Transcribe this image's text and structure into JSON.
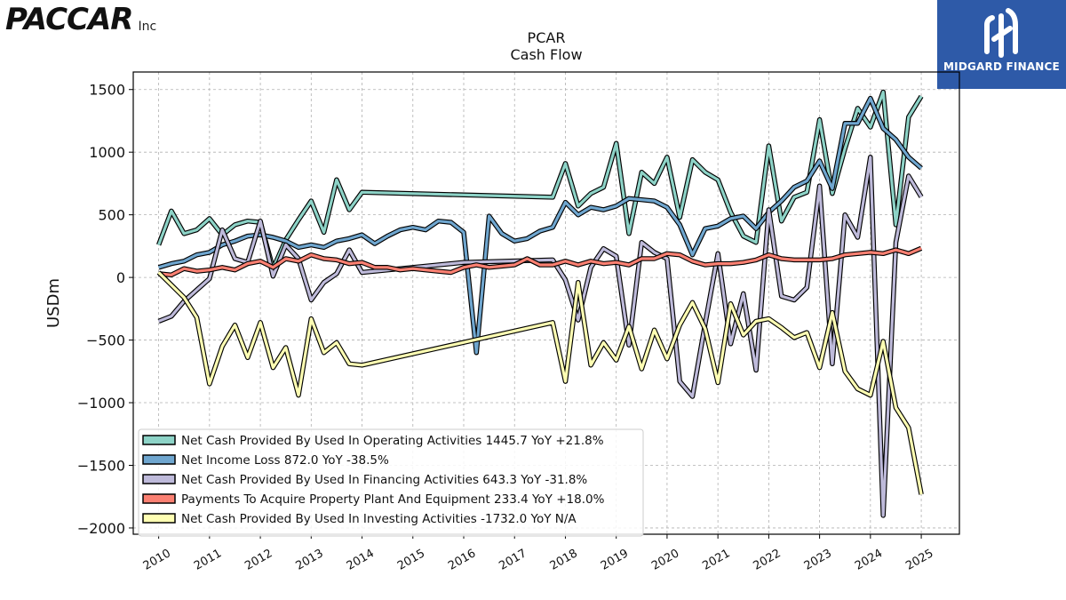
{
  "header": {
    "logo_text": "PACCAR",
    "logo_suffix": "Inc",
    "badge_text": "MIDGARD FINANCE"
  },
  "chart_data": {
    "type": "line",
    "title": "PCAR",
    "subtitle": "Cash Flow",
    "xlabel": "",
    "ylabel": "USDm",
    "xlim": [
      2009.5,
      2025.75
    ],
    "ylim": [
      -2050,
      1640
    ],
    "x_ticks": [
      2010,
      2011,
      2012,
      2013,
      2014,
      2015,
      2016,
      2017,
      2018,
      2019,
      2020,
      2021,
      2022,
      2023,
      2024,
      2025
    ],
    "y_ticks": [
      -2000,
      -1500,
      -1000,
      -500,
      0,
      500,
      1000,
      1500
    ],
    "y_tick_labels": [
      "−2000",
      "−1500",
      "−1000",
      "−500",
      "0",
      "500",
      "1000",
      "1500"
    ],
    "grid": true,
    "legend_position": "bottom-left",
    "series": [
      {
        "name": "Net Cash Provided By Used In Operating Activities",
        "legend": "Net Cash Provided By Used In Operating Activities  1445.7 YoY +21.8%",
        "color": "#8dd3c7",
        "points": [
          [
            2010.0,
            260
          ],
          [
            2010.25,
            530
          ],
          [
            2010.5,
            350
          ],
          [
            2010.75,
            380
          ],
          [
            2011.0,
            470
          ],
          [
            2011.25,
            340
          ],
          [
            2011.5,
            420
          ],
          [
            2011.75,
            450
          ],
          [
            2012.0,
            440
          ],
          [
            2012.25,
            70
          ],
          [
            2012.5,
            300
          ],
          [
            2012.75,
            460
          ],
          [
            2013.0,
            610
          ],
          [
            2013.25,
            360
          ],
          [
            2013.5,
            780
          ],
          [
            2013.75,
            540
          ],
          [
            2014.0,
            680
          ],
          [
            2017.75,
            640
          ],
          [
            2018.0,
            910
          ],
          [
            2018.25,
            570
          ],
          [
            2018.5,
            670
          ],
          [
            2018.75,
            720
          ],
          [
            2019.0,
            1070
          ],
          [
            2019.25,
            350
          ],
          [
            2019.5,
            840
          ],
          [
            2019.75,
            750
          ],
          [
            2020.0,
            960
          ],
          [
            2020.25,
            480
          ],
          [
            2020.5,
            940
          ],
          [
            2020.75,
            840
          ],
          [
            2021.0,
            780
          ],
          [
            2021.25,
            520
          ],
          [
            2021.5,
            330
          ],
          [
            2021.75,
            280
          ],
          [
            2022.0,
            1050
          ],
          [
            2022.25,
            450
          ],
          [
            2022.5,
            640
          ],
          [
            2022.75,
            680
          ],
          [
            2023.0,
            1260
          ],
          [
            2023.25,
            670
          ],
          [
            2023.5,
            1030
          ],
          [
            2023.75,
            1350
          ],
          [
            2024.0,
            1200
          ],
          [
            2024.25,
            1480
          ],
          [
            2024.5,
            420
          ],
          [
            2024.75,
            1280
          ],
          [
            2025.0,
            1446
          ]
        ]
      },
      {
        "name": "Net Income Loss",
        "legend": "Net Income Loss  872.0 YoY -38.5%",
        "color": "#6fa6cf",
        "points": [
          [
            2010.0,
            80
          ],
          [
            2010.25,
            110
          ],
          [
            2010.5,
            130
          ],
          [
            2010.75,
            180
          ],
          [
            2011.0,
            200
          ],
          [
            2011.25,
            260
          ],
          [
            2011.5,
            290
          ],
          [
            2011.75,
            330
          ],
          [
            2012.0,
            340
          ],
          [
            2012.25,
            320
          ],
          [
            2012.5,
            290
          ],
          [
            2012.75,
            240
          ],
          [
            2013.0,
            260
          ],
          [
            2013.25,
            240
          ],
          [
            2013.5,
            290
          ],
          [
            2013.75,
            310
          ],
          [
            2014.0,
            340
          ],
          [
            2014.25,
            270
          ],
          [
            2014.5,
            330
          ],
          [
            2014.75,
            380
          ],
          [
            2015.0,
            400
          ],
          [
            2015.25,
            380
          ],
          [
            2015.5,
            450
          ],
          [
            2015.75,
            440
          ],
          [
            2016.0,
            360
          ],
          [
            2016.25,
            -600
          ],
          [
            2016.5,
            490
          ],
          [
            2016.75,
            350
          ],
          [
            2017.0,
            290
          ],
          [
            2017.25,
            310
          ],
          [
            2017.5,
            370
          ],
          [
            2017.75,
            400
          ],
          [
            2018.0,
            600
          ],
          [
            2018.25,
            500
          ],
          [
            2018.5,
            560
          ],
          [
            2018.75,
            540
          ],
          [
            2019.0,
            570
          ],
          [
            2019.25,
            630
          ],
          [
            2019.5,
            620
          ],
          [
            2019.75,
            610
          ],
          [
            2020.0,
            560
          ],
          [
            2020.25,
            420
          ],
          [
            2020.5,
            180
          ],
          [
            2020.75,
            390
          ],
          [
            2021.0,
            410
          ],
          [
            2021.25,
            470
          ],
          [
            2021.5,
            490
          ],
          [
            2021.75,
            390
          ],
          [
            2022.0,
            520
          ],
          [
            2022.25,
            610
          ],
          [
            2022.5,
            720
          ],
          [
            2022.75,
            770
          ],
          [
            2023.0,
            930
          ],
          [
            2023.25,
            710
          ],
          [
            2023.5,
            1230
          ],
          [
            2023.75,
            1230
          ],
          [
            2024.0,
            1430
          ],
          [
            2024.25,
            1190
          ],
          [
            2024.5,
            1100
          ],
          [
            2024.75,
            960
          ],
          [
            2025.0,
            872
          ]
        ]
      },
      {
        "name": "Net Cash Provided By Used In Financing Activities",
        "legend": "Net Cash Provided By Used In Financing Activities  643.3 YoY -31.8%",
        "color": "#bebada",
        "points": [
          [
            2010.0,
            -350
          ],
          [
            2010.25,
            -310
          ],
          [
            2010.5,
            -190
          ],
          [
            2010.75,
            -100
          ],
          [
            2011.0,
            -10
          ],
          [
            2011.25,
            380
          ],
          [
            2011.5,
            150
          ],
          [
            2011.75,
            120
          ],
          [
            2012.0,
            450
          ],
          [
            2012.25,
            10
          ],
          [
            2012.5,
            260
          ],
          [
            2012.75,
            150
          ],
          [
            2013.0,
            -180
          ],
          [
            2013.25,
            -40
          ],
          [
            2013.5,
            30
          ],
          [
            2013.75,
            220
          ],
          [
            2014.0,
            40
          ],
          [
            2016.0,
            120
          ],
          [
            2017.75,
            140
          ],
          [
            2018.0,
            -20
          ],
          [
            2018.25,
            -340
          ],
          [
            2018.5,
            80
          ],
          [
            2018.75,
            230
          ],
          [
            2019.0,
            170
          ],
          [
            2019.25,
            -540
          ],
          [
            2019.5,
            280
          ],
          [
            2019.75,
            200
          ],
          [
            2020.0,
            150
          ],
          [
            2020.25,
            -830
          ],
          [
            2020.5,
            -950
          ],
          [
            2020.75,
            -370
          ],
          [
            2021.0,
            190
          ],
          [
            2021.25,
            -530
          ],
          [
            2021.5,
            -130
          ],
          [
            2021.75,
            -740
          ],
          [
            2022.0,
            540
          ],
          [
            2022.25,
            -150
          ],
          [
            2022.5,
            -180
          ],
          [
            2022.75,
            -80
          ],
          [
            2023.0,
            730
          ],
          [
            2023.25,
            -690
          ],
          [
            2023.5,
            500
          ],
          [
            2023.75,
            320
          ],
          [
            2024.0,
            960
          ],
          [
            2024.25,
            -1900
          ],
          [
            2024.5,
            280
          ],
          [
            2024.75,
            810
          ],
          [
            2025.0,
            643
          ]
        ]
      },
      {
        "name": "Payments To Acquire Property Plant And Equipment",
        "legend": "Payments To Acquire Property Plant And Equipment  233.4 YoY +18.0%",
        "color": "#fb8072",
        "points": [
          [
            2010.0,
            30
          ],
          [
            2010.25,
            20
          ],
          [
            2010.5,
            70
          ],
          [
            2010.75,
            50
          ],
          [
            2011.0,
            60
          ],
          [
            2011.25,
            80
          ],
          [
            2011.5,
            60
          ],
          [
            2011.75,
            110
          ],
          [
            2012.0,
            130
          ],
          [
            2012.25,
            80
          ],
          [
            2012.5,
            150
          ],
          [
            2012.75,
            130
          ],
          [
            2013.0,
            180
          ],
          [
            2013.25,
            150
          ],
          [
            2013.5,
            140
          ],
          [
            2013.75,
            110
          ],
          [
            2014.0,
            120
          ],
          [
            2014.25,
            80
          ],
          [
            2014.5,
            80
          ],
          [
            2014.75,
            60
          ],
          [
            2015.0,
            70
          ],
          [
            2015.25,
            60
          ],
          [
            2015.5,
            50
          ],
          [
            2015.75,
            40
          ],
          [
            2016.0,
            80
          ],
          [
            2016.25,
            100
          ],
          [
            2016.5,
            80
          ],
          [
            2016.75,
            90
          ],
          [
            2017.0,
            100
          ],
          [
            2017.25,
            150
          ],
          [
            2017.5,
            100
          ],
          [
            2017.75,
            100
          ],
          [
            2018.0,
            130
          ],
          [
            2018.25,
            100
          ],
          [
            2018.5,
            130
          ],
          [
            2018.75,
            110
          ],
          [
            2019.0,
            120
          ],
          [
            2019.25,
            100
          ],
          [
            2019.5,
            150
          ],
          [
            2019.75,
            150
          ],
          [
            2020.0,
            190
          ],
          [
            2020.25,
            180
          ],
          [
            2020.5,
            130
          ],
          [
            2020.75,
            100
          ],
          [
            2021.0,
            110
          ],
          [
            2021.25,
            110
          ],
          [
            2021.5,
            120
          ],
          [
            2021.75,
            140
          ],
          [
            2022.0,
            180
          ],
          [
            2022.25,
            150
          ],
          [
            2022.5,
            140
          ],
          [
            2022.75,
            140
          ],
          [
            2023.0,
            140
          ],
          [
            2023.25,
            150
          ],
          [
            2023.5,
            180
          ],
          [
            2023.75,
            190
          ],
          [
            2024.0,
            200
          ],
          [
            2024.25,
            190
          ],
          [
            2024.5,
            220
          ],
          [
            2024.75,
            190
          ],
          [
            2025.0,
            233
          ]
        ]
      },
      {
        "name": "Net Cash Provided By Used In Investing Activities",
        "legend": "Net Cash Provided By Used In Investing Activities  -1732.0 YoY N/A",
        "color": "#ffffb3",
        "points": [
          [
            2010.0,
            40
          ],
          [
            2010.25,
            -60
          ],
          [
            2010.5,
            -160
          ],
          [
            2010.75,
            -320
          ],
          [
            2011.0,
            -850
          ],
          [
            2011.25,
            -550
          ],
          [
            2011.5,
            -380
          ],
          [
            2011.75,
            -640
          ],
          [
            2012.0,
            -360
          ],
          [
            2012.25,
            -720
          ],
          [
            2012.5,
            -560
          ],
          [
            2012.75,
            -940
          ],
          [
            2013.0,
            -330
          ],
          [
            2013.25,
            -600
          ],
          [
            2013.5,
            -520
          ],
          [
            2013.75,
            -690
          ],
          [
            2014.0,
            -700
          ],
          [
            2017.75,
            -360
          ],
          [
            2018.0,
            -830
          ],
          [
            2018.25,
            -40
          ],
          [
            2018.5,
            -700
          ],
          [
            2018.75,
            -520
          ],
          [
            2019.0,
            -660
          ],
          [
            2019.25,
            -390
          ],
          [
            2019.5,
            -730
          ],
          [
            2019.75,
            -420
          ],
          [
            2020.0,
            -650
          ],
          [
            2020.25,
            -380
          ],
          [
            2020.5,
            -200
          ],
          [
            2020.75,
            -410
          ],
          [
            2021.0,
            -840
          ],
          [
            2021.25,
            -210
          ],
          [
            2021.5,
            -460
          ],
          [
            2021.75,
            -350
          ],
          [
            2022.0,
            -330
          ],
          [
            2022.25,
            -400
          ],
          [
            2022.5,
            -480
          ],
          [
            2022.75,
            -440
          ],
          [
            2023.0,
            -720
          ],
          [
            2023.25,
            -280
          ],
          [
            2023.5,
            -750
          ],
          [
            2023.75,
            -890
          ],
          [
            2024.0,
            -940
          ],
          [
            2024.25,
            -510
          ],
          [
            2024.5,
            -1040
          ],
          [
            2024.75,
            -1200
          ],
          [
            2025.0,
            -1732
          ]
        ]
      }
    ]
  }
}
